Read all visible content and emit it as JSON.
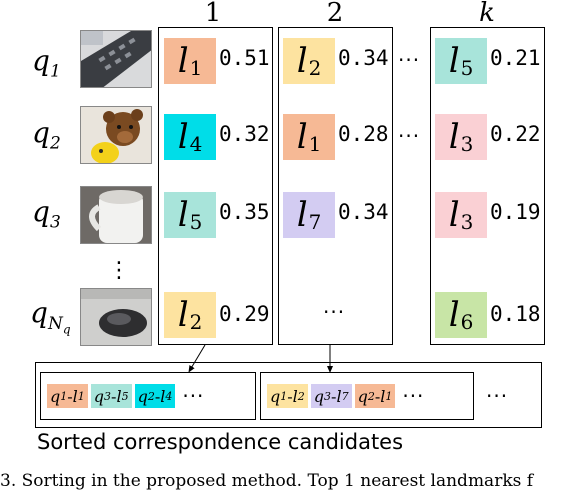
{
  "columns": [
    "1",
    "2",
    "k"
  ],
  "queries": [
    {
      "base": "q",
      "sub": "1"
    },
    {
      "base": "q",
      "sub": "2"
    },
    {
      "base": "q",
      "sub": "3"
    },
    {
      "base": "q",
      "sub": "N",
      "subsub": "q"
    }
  ],
  "vertical_ellipsis": "⋮",
  "ellipsis": "···",
  "col1": [
    {
      "letter": "l",
      "sub": "1",
      "score": "0.51",
      "color": "#f6b995"
    },
    {
      "letter": "l",
      "sub": "4",
      "score": "0.32",
      "color": "#00dde8"
    },
    {
      "letter": "l",
      "sub": "5",
      "score": "0.35",
      "color": "#a8e4da"
    },
    {
      "letter": "l",
      "sub": "2",
      "score": "0.29",
      "color": "#fde3a0"
    }
  ],
  "col2": [
    {
      "letter": "l",
      "sub": "2",
      "score": "0.34",
      "color": "#fde3a0"
    },
    {
      "letter": "l",
      "sub": "1",
      "score": "0.28",
      "color": "#f6b995"
    },
    {
      "letter": "l",
      "sub": "7",
      "score": "0.34",
      "color": "#d3ccf2"
    }
  ],
  "colk": [
    {
      "letter": "l",
      "sub": "5",
      "score": "0.21",
      "color": "#a8e4da"
    },
    {
      "letter": "l",
      "sub": "3",
      "score": "0.22",
      "color": "#fad0d4"
    },
    {
      "letter": "l",
      "sub": "3",
      "score": "0.19",
      "color": "#fad0d4"
    },
    {
      "letter": "l",
      "sub": "6",
      "score": "0.18",
      "color": "#c8e5a6"
    }
  ],
  "group1": [
    {
      "q": "q",
      "qs": "1",
      "l": "l",
      "ls": "1",
      "color": "#f6b995"
    },
    {
      "q": "q",
      "qs": "3",
      "l": "l",
      "ls": "5",
      "color": "#a8e4da"
    },
    {
      "q": "q",
      "qs": "2",
      "l": "l",
      "ls": "4",
      "color": "#00dde8"
    }
  ],
  "group2": [
    {
      "q": "q",
      "qs": "1",
      "l": "l",
      "ls": "2",
      "color": "#fde3a0"
    },
    {
      "q": "q",
      "qs": "3",
      "l": "l",
      "ls": "7",
      "color": "#d3ccf2"
    },
    {
      "q": "q",
      "qs": "2",
      "l": "l",
      "ls": "1",
      "color": "#f6b995"
    }
  ],
  "dash": "-",
  "caption": "Sorted correspondence candidates",
  "figure_caption": "3.    Sorting in the proposed method. Top 1 nearest landmarks f"
}
